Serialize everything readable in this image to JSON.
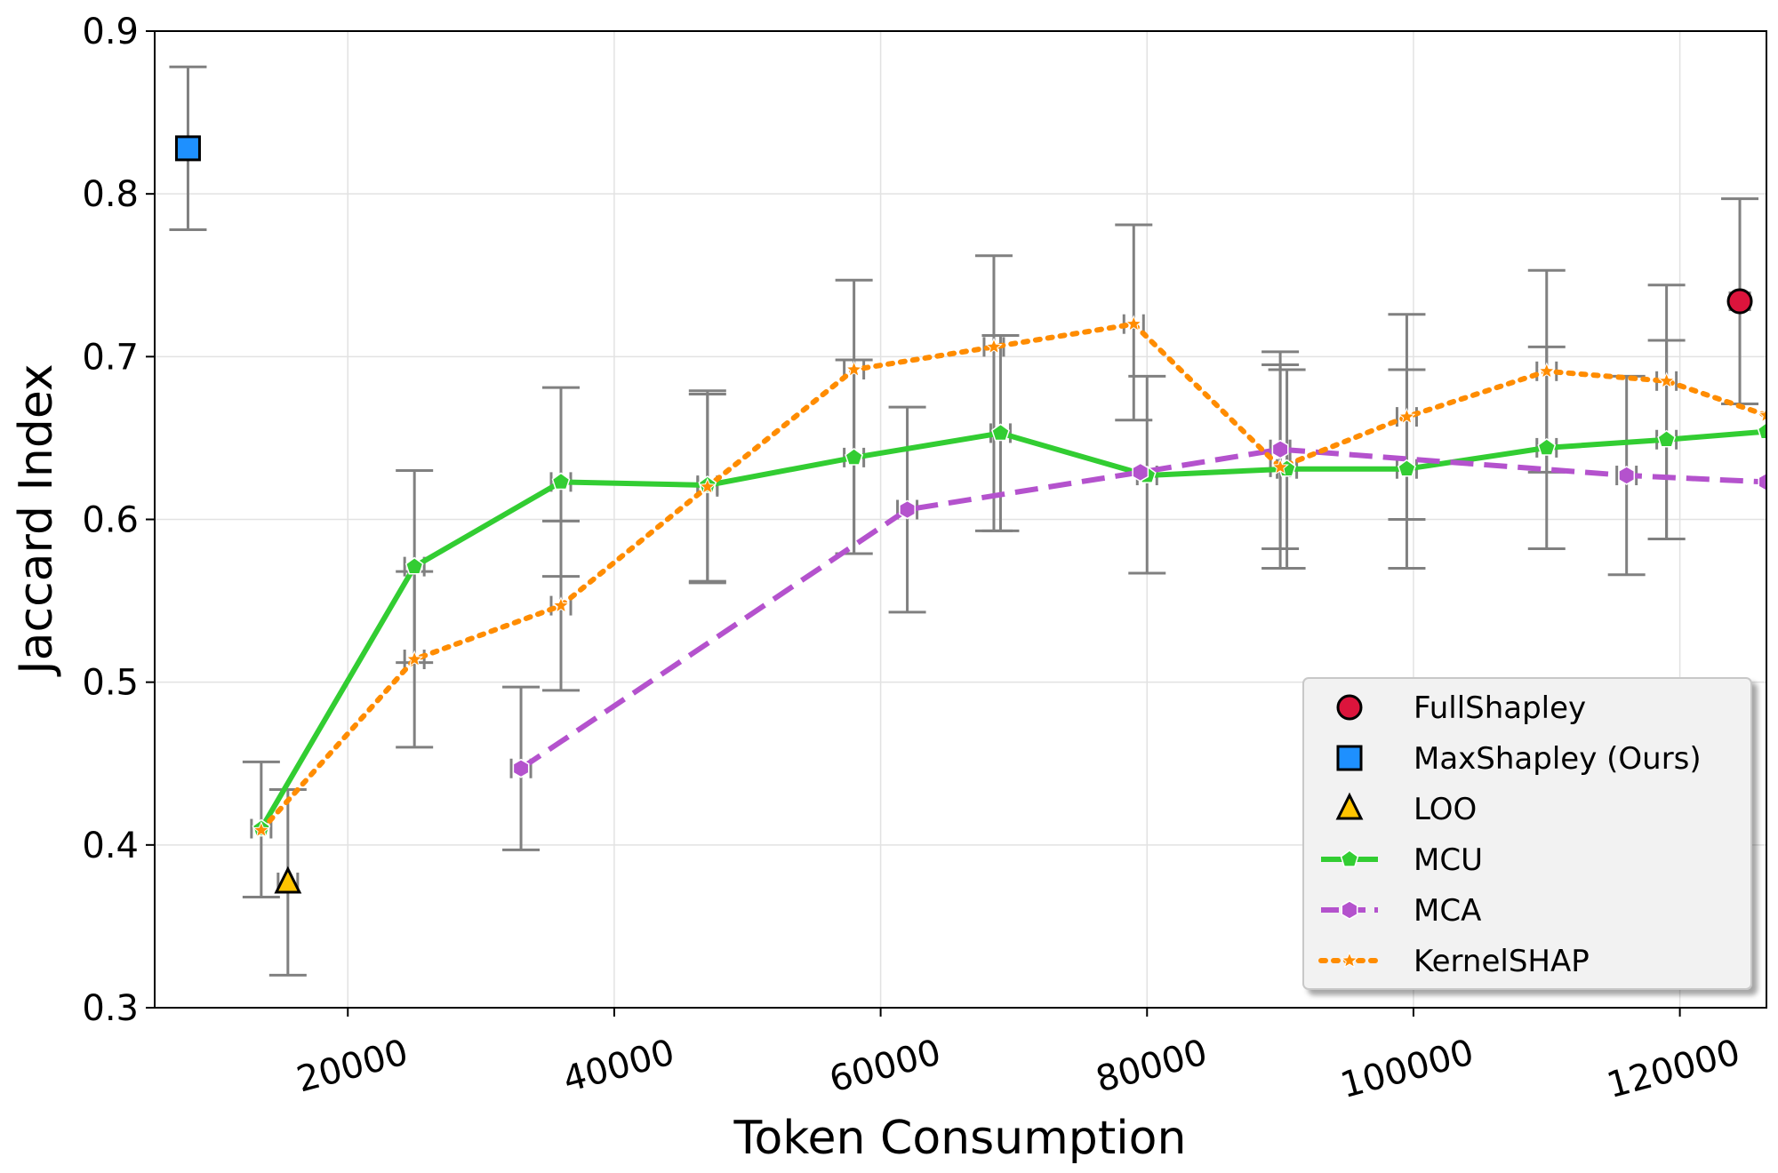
{
  "chart_data": {
    "type": "line",
    "title": "",
    "xlabel": "Token Consumption",
    "ylabel": "Jaccard Index",
    "xlim": [
      5500,
      126500
    ],
    "ylim": [
      0.3,
      0.9
    ],
    "xticks": [
      20000,
      40000,
      60000,
      80000,
      100000,
      120000
    ],
    "xtick_labels": [
      "20000",
      "40000",
      "60000",
      "80000",
      "100000",
      "120000"
    ],
    "yticks": [
      0.3,
      0.4,
      0.5,
      0.6,
      0.7,
      0.8,
      0.9
    ],
    "ytick_labels": [
      "0.3",
      "0.4",
      "0.5",
      "0.6",
      "0.7",
      "0.8",
      "0.9"
    ],
    "grid": true,
    "legend_position": "bottom-right",
    "series": [
      {
        "name": "FullShapley",
        "kind": "point",
        "marker": "circle",
        "color": "#dc143c",
        "x": [
          124500
        ],
        "y": [
          0.734
        ],
        "yerr_low": [
          0.671
        ],
        "yerr_high": [
          0.797
        ]
      },
      {
        "name": "MaxShapley (Ours)",
        "kind": "point",
        "marker": "square",
        "color": "#1e90ff",
        "x": [
          8000
        ],
        "y": [
          0.828
        ],
        "yerr_low": [
          0.778
        ],
        "yerr_high": [
          0.878
        ]
      },
      {
        "name": "LOO",
        "kind": "point",
        "marker": "triangle",
        "color": "#ffc400",
        "x": [
          15500
        ],
        "y": [
          0.377
        ],
        "yerr_low": [
          0.32
        ],
        "yerr_high": [
          0.434
        ]
      },
      {
        "name": "MCU",
        "kind": "line",
        "marker": "pentagon",
        "color": "#32cd32",
        "dash": "solid",
        "x": [
          13500,
          25000,
          36000,
          47000,
          58000,
          69000,
          80000,
          90500,
          99500,
          110000,
          119000,
          126500
        ],
        "y": [
          0.41,
          0.571,
          0.623,
          0.621,
          0.638,
          0.653,
          0.627,
          0.631,
          0.631,
          0.644,
          0.649,
          0.654
        ],
        "yerr_low": [
          0.368,
          0.512,
          0.565,
          0.562,
          0.579,
          0.593,
          0.567,
          0.57,
          0.57,
          0.582,
          0.588,
          null
        ],
        "yerr_high": [
          0.451,
          0.63,
          0.681,
          0.679,
          0.698,
          0.713,
          0.688,
          0.692,
          0.692,
          0.706,
          0.71,
          null
        ]
      },
      {
        "name": "MCA",
        "kind": "line",
        "marker": "hexagon",
        "color": "#b452cd",
        "dash": "dashed",
        "x": [
          33000,
          62000,
          79500,
          90000,
          116000,
          126500
        ],
        "y": [
          0.447,
          0.606,
          0.629,
          0.643,
          0.627,
          0.623
        ],
        "yerr_low": [
          0.397,
          0.543,
          null,
          0.582,
          0.566,
          null
        ],
        "yerr_high": [
          0.497,
          0.669,
          null,
          0.703,
          0.688,
          null
        ]
      },
      {
        "name": "KernelSHAP",
        "kind": "line",
        "marker": "star",
        "color": "#ff8c00",
        "dash": "dotted",
        "x": [
          13500,
          25000,
          36000,
          47000,
          58000,
          68500,
          79000,
          90000,
          99500,
          110000,
          119000,
          126500
        ],
        "y": [
          0.409,
          0.514,
          0.547,
          0.62,
          0.692,
          0.706,
          0.72,
          0.632,
          0.663,
          0.691,
          0.685,
          0.664
        ],
        "yerr_low": [
          null,
          0.46,
          0.495,
          0.561,
          0.579,
          0.593,
          0.661,
          0.57,
          0.6,
          0.629,
          0.588,
          null
        ],
        "yerr_high": [
          null,
          0.568,
          0.599,
          0.677,
          0.747,
          0.762,
          0.781,
          0.695,
          0.726,
          0.753,
          0.744,
          null
        ]
      }
    ]
  }
}
